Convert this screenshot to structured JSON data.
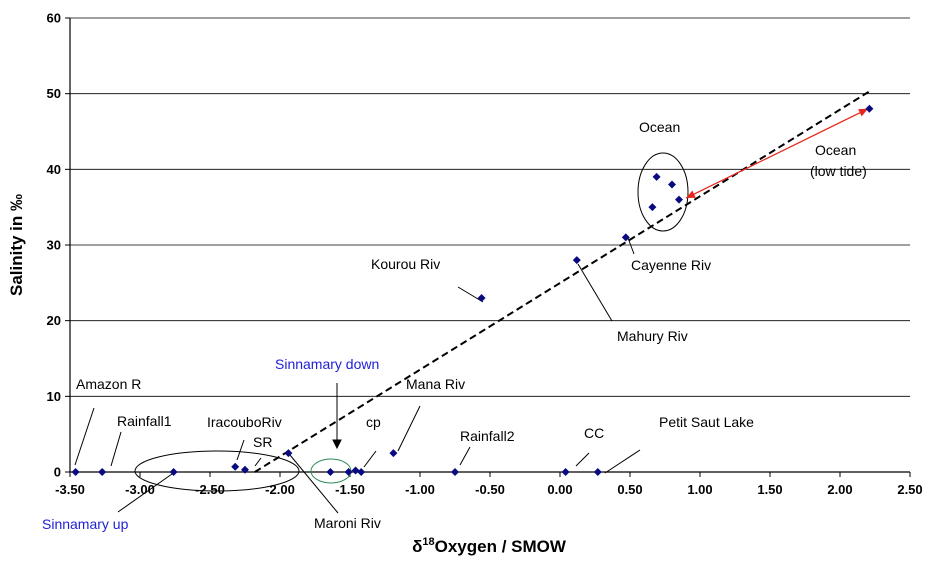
{
  "chart_data": {
    "type": "scatter",
    "title": "",
    "xlabel": {
      "prefix": "δ",
      "sup": "18",
      "suffix": "Oxygen / SMOW"
    },
    "ylabel": "Salinity in ‰",
    "xlim": [
      -3.5,
      2.5
    ],
    "ylim": [
      0,
      60
    ],
    "x_ticks": [
      "-3.50",
      "-3.00",
      "-2.50",
      "-2.00",
      "-1.50",
      "-1.00",
      "-0.50",
      "0.00",
      "0.50",
      "1.00",
      "1.50",
      "2.00",
      "2.50"
    ],
    "y_ticks": [
      "0",
      "10",
      "20",
      "30",
      "40",
      "50",
      "60"
    ],
    "grid": "horizontal",
    "marker_color": "#0a0a80",
    "points": [
      {
        "x": -3.46,
        "y": 0
      },
      {
        "x": -3.27,
        "y": 0
      },
      {
        "x": -2.76,
        "y": 0
      },
      {
        "x": -2.32,
        "y": 0.7
      },
      {
        "x": -2.25,
        "y": 0.3
      },
      {
        "x": -1.94,
        "y": 2.5
      },
      {
        "x": -1.64,
        "y": 0
      },
      {
        "x": -1.51,
        "y": 0
      },
      {
        "x": -1.46,
        "y": 0.2
      },
      {
        "x": -1.42,
        "y": 0
      },
      {
        "x": -1.19,
        "y": 2.5
      },
      {
        "x": -0.75,
        "y": 0
      },
      {
        "x": -0.56,
        "y": 23
      },
      {
        "x": 0.04,
        "y": 0
      },
      {
        "x": 0.12,
        "y": 28
      },
      {
        "x": 0.27,
        "y": 0
      },
      {
        "x": 0.47,
        "y": 31
      },
      {
        "x": 0.66,
        "y": 35
      },
      {
        "x": 0.69,
        "y": 39
      },
      {
        "x": 0.8,
        "y": 38
      },
      {
        "x": 0.85,
        "y": 36
      },
      {
        "x": 2.21,
        "y": 48
      }
    ],
    "trendline": {
      "style": "dashed",
      "color": "#000000",
      "from": [
        -2.18,
        0
      ],
      "to": [
        2.21,
        50.3
      ]
    },
    "arrow": {
      "color": "#e8261c",
      "from": [
        0.9,
        36.2
      ],
      "to": [
        2.2,
        48
      ],
      "double_headed": true
    },
    "annotations": {
      "amazon": "Amazon R",
      "rainfall1": "Rainfall1",
      "sinnamary_up": "Sinnamary up",
      "iracoubo": "IracouboRiv",
      "sr": "SR",
      "maroni": "Maroni Riv",
      "sinnamary_down": "Sinnamary down",
      "cp": "cp",
      "mana": "Mana Riv",
      "rainfall2": "Rainfall2",
      "cc": "CC",
      "petit_saut": "Petit Saut Lake",
      "kourou": "Kourou Riv",
      "mahury": "Mahury Riv",
      "cayenne": "Cayenne Riv",
      "ocean": "Ocean",
      "ocean_low_1": "Ocean",
      "ocean_low_2": "(low tide)"
    }
  }
}
